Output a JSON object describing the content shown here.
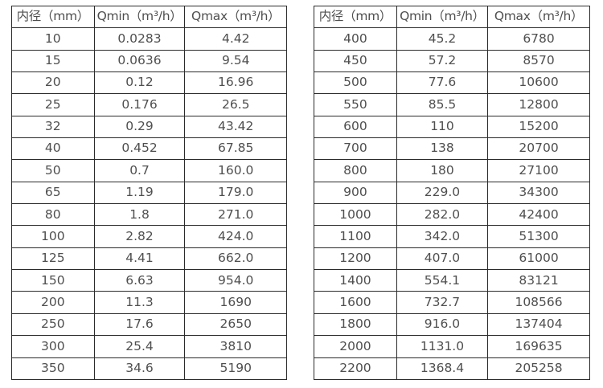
{
  "page": {
    "background": "#ffffff"
  },
  "colors": {
    "table_border": "#2b2b2b",
    "table_text": "#4f4f4f"
  },
  "tables": [
    {
      "name": "flow-spec-small-diameters",
      "headers": [
        "内径（mm）",
        "Qmin（m³/h）",
        "Qmax（m³/h）"
      ],
      "rows": [
        [
          "10",
          "0.0283",
          "4.42"
        ],
        [
          "15",
          "0.0636",
          "9.54"
        ],
        [
          "20",
          "0.12",
          "16.96"
        ],
        [
          "25",
          "0.176",
          "26.5"
        ],
        [
          "32",
          "0.29",
          "43.42"
        ],
        [
          "40",
          "0.452",
          "67.85"
        ],
        [
          "50",
          "0.7",
          "160.0"
        ],
        [
          "65",
          "1.19",
          "179.0"
        ],
        [
          "80",
          "1.8",
          "271.0"
        ],
        [
          "100",
          "2.82",
          "424.0"
        ],
        [
          "125",
          "4.41",
          "662.0"
        ],
        [
          "150",
          "6.63",
          "954.0"
        ],
        [
          "200",
          "11.3",
          "1690"
        ],
        [
          "250",
          "17.6",
          "2650"
        ],
        [
          "300",
          "25.4",
          "3810"
        ],
        [
          "350",
          "34.6",
          "5190"
        ]
      ]
    },
    {
      "name": "flow-spec-large-diameters",
      "headers": [
        "内径（mm）",
        "Qmin（m³/h）",
        "Qmax（m³/h）"
      ],
      "rows": [
        [
          "400",
          "45.2",
          "6780"
        ],
        [
          "450",
          "57.2",
          "8570"
        ],
        [
          "500",
          "77.6",
          "10600"
        ],
        [
          "550",
          "85.5",
          "12800"
        ],
        [
          "600",
          "110",
          "15200"
        ],
        [
          "700",
          "138",
          "20700"
        ],
        [
          "800",
          "180",
          "27100"
        ],
        [
          "900",
          "229.0",
          "34300"
        ],
        [
          "1000",
          "282.0",
          "42400"
        ],
        [
          "1100",
          "342.0",
          "51300"
        ],
        [
          "1200",
          "407.0",
          "61000"
        ],
        [
          "1400",
          "554.1",
          "83121"
        ],
        [
          "1600",
          "732.7",
          "108566"
        ],
        [
          "1800",
          "916.0",
          "137404"
        ],
        [
          "2000",
          "1131.0",
          "169635"
        ],
        [
          "2200",
          "1368.4",
          "205258"
        ]
      ]
    }
  ]
}
